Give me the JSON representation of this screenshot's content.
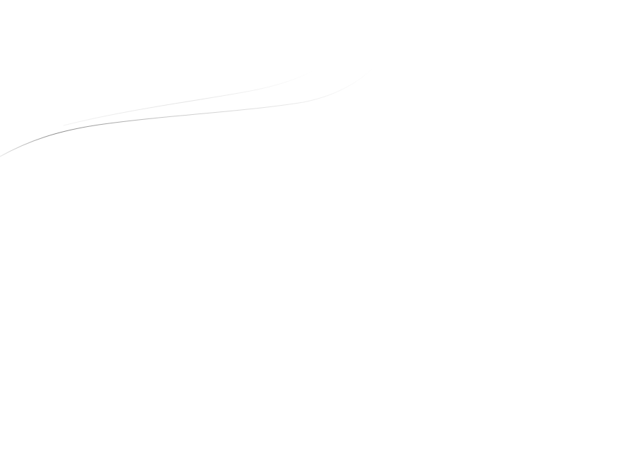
{
  "background": {
    "color": "#ffffff"
  },
  "decoration": {
    "icon": "swoosh-curves",
    "curve_colors": [
      "#8a8a8a",
      "#e4e4e4"
    ]
  }
}
